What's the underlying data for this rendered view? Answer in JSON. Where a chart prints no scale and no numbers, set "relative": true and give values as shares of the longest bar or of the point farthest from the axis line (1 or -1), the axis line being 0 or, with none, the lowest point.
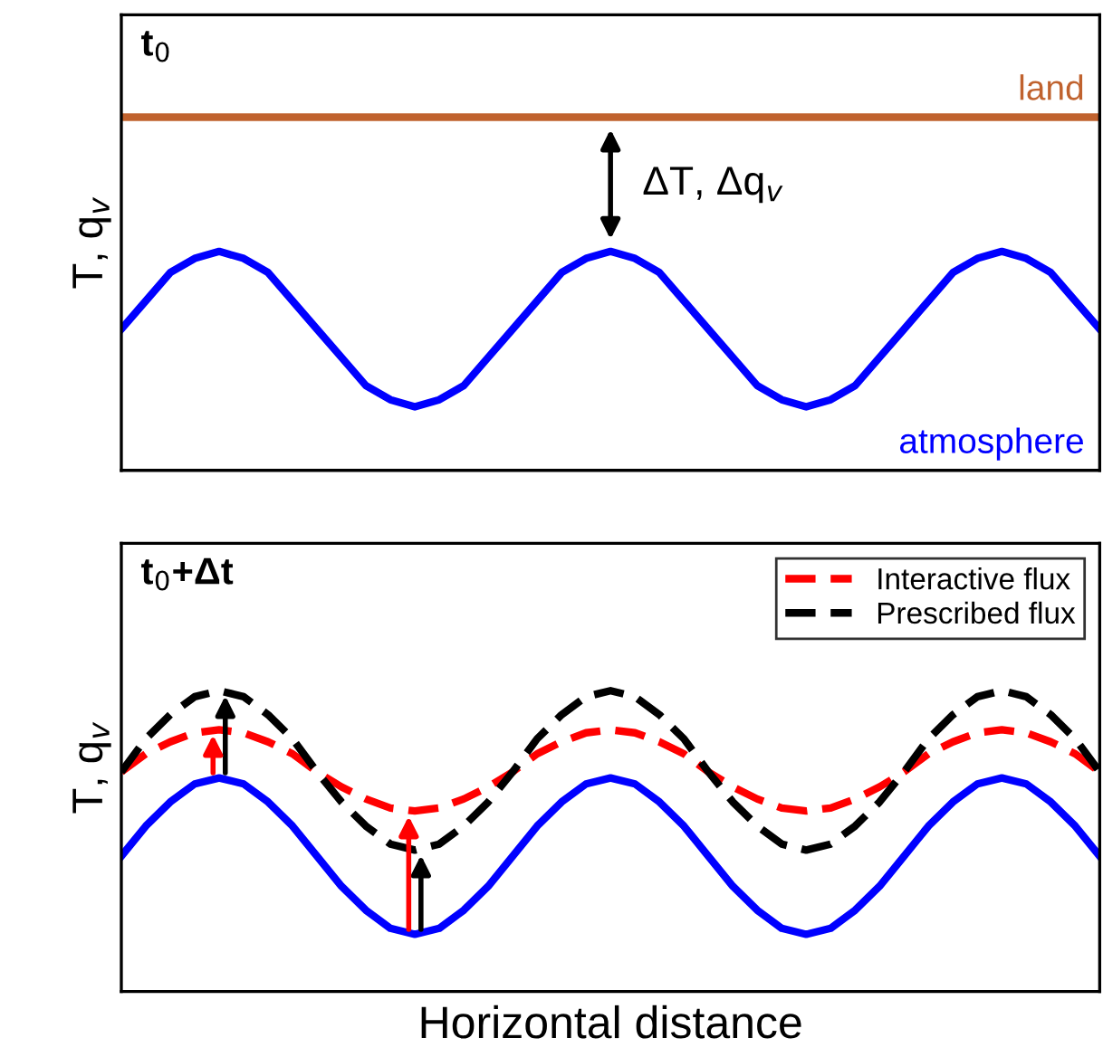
{
  "chart_data": [
    {
      "type": "line",
      "relative": true,
      "title": "t$_{0}$",
      "ylabel": "T, q$_{v}$",
      "grid": false,
      "legend": false,
      "line_style": "solid",
      "marker": "none",
      "categories": [
        null,
        null,
        null,
        null,
        null,
        null,
        null,
        null,
        null,
        null,
        null,
        null,
        null,
        null,
        null,
        null,
        null,
        null,
        null,
        null,
        null,
        null,
        null,
        null,
        null,
        null,
        null,
        null,
        null,
        null,
        null,
        null,
        null,
        null,
        null,
        null,
        null,
        null,
        null,
        null,
        null
      ],
      "annotations": [
        "ΔT, Δq$_{v}$"
      ],
      "series": [
        {
          "name": "land",
          "color": "#c0622e",
          "values": [
            1,
            1,
            1,
            1,
            1,
            1,
            1,
            1,
            1,
            1,
            1,
            1,
            1,
            1,
            1,
            1,
            1,
            1,
            1,
            1,
            1,
            1,
            1,
            1,
            1,
            1,
            1,
            1,
            1,
            1,
            1,
            1,
            1,
            1,
            1,
            1,
            1,
            1,
            1,
            1,
            1
          ]
        },
        {
          "name": "atmosphere",
          "color": "#0000ff",
          "values": [
            0.4,
            0.48,
            0.56,
            0.6,
            0.62,
            0.6,
            0.56,
            0.48,
            0.4,
            0.32,
            0.24,
            0.2,
            0.18,
            0.2,
            0.24,
            0.32,
            0.4,
            0.48,
            0.56,
            0.6,
            0.62,
            0.6,
            0.56,
            0.48,
            0.4,
            0.32,
            0.24,
            0.2,
            0.18,
            0.2,
            0.24,
            0.32,
            0.4,
            0.48,
            0.56,
            0.6,
            0.62,
            0.6,
            0.56,
            0.48,
            0.4
          ]
        }
      ]
    },
    {
      "type": "line",
      "relative": true,
      "title": "t$_{0}$+Δt",
      "ylabel": "T, q$_{v}$",
      "xlabel": "Horizontal distance",
      "grid": false,
      "legend": "top right",
      "marker": "none",
      "categories": [
        null,
        null,
        null,
        null,
        null,
        null,
        null,
        null,
        null,
        null,
        null,
        null,
        null,
        null,
        null,
        null,
        null,
        null,
        null,
        null,
        null,
        null,
        null,
        null,
        null,
        null,
        null,
        null,
        null,
        null,
        null,
        null,
        null,
        null,
        null,
        null,
        null,
        null,
        null,
        null,
        null
      ],
      "series": [
        {
          "color": "#0000ff",
          "line_style": "solid",
          "values": [
            0.45,
            0.55,
            0.63,
            0.69,
            0.71,
            0.69,
            0.63,
            0.55,
            0.45,
            0.35,
            0.27,
            0.21,
            0.19,
            0.21,
            0.27,
            0.35,
            0.45,
            0.55,
            0.63,
            0.69,
            0.71,
            0.69,
            0.63,
            0.55,
            0.45,
            0.35,
            0.27,
            0.21,
            0.19,
            0.21,
            0.27,
            0.35,
            0.45,
            0.55,
            0.63,
            0.69,
            0.71,
            0.69,
            0.63,
            0.55,
            0.45
          ]
        },
        {
          "name": "Interactive flux",
          "color": "#ff0000",
          "line_style": "dashed",
          "values": [
            0.73,
            0.79,
            0.83,
            0.86,
            0.87,
            0.86,
            0.83,
            0.79,
            0.73,
            0.68,
            0.64,
            0.61,
            0.6,
            0.61,
            0.64,
            0.68,
            0.73,
            0.79,
            0.83,
            0.86,
            0.87,
            0.86,
            0.83,
            0.79,
            0.73,
            0.68,
            0.64,
            0.61,
            0.6,
            0.61,
            0.64,
            0.68,
            0.73,
            0.79,
            0.83,
            0.86,
            0.87,
            0.86,
            0.83,
            0.79,
            0.73
          ]
        },
        {
          "name": "Prescribed flux",
          "color": "#000000",
          "line_style": "dashed",
          "values": [
            0.73,
            0.84,
            0.92,
            0.98,
            1,
            0.98,
            0.92,
            0.84,
            0.73,
            0.63,
            0.55,
            0.49,
            0.47,
            0.49,
            0.55,
            0.63,
            0.73,
            0.84,
            0.92,
            0.98,
            1,
            0.98,
            0.92,
            0.84,
            0.73,
            0.63,
            0.55,
            0.49,
            0.47,
            0.49,
            0.55,
            0.63,
            0.73,
            0.84,
            0.92,
            0.98,
            1,
            0.98,
            0.92,
            0.84,
            0.73
          ]
        }
      ]
    }
  ]
}
